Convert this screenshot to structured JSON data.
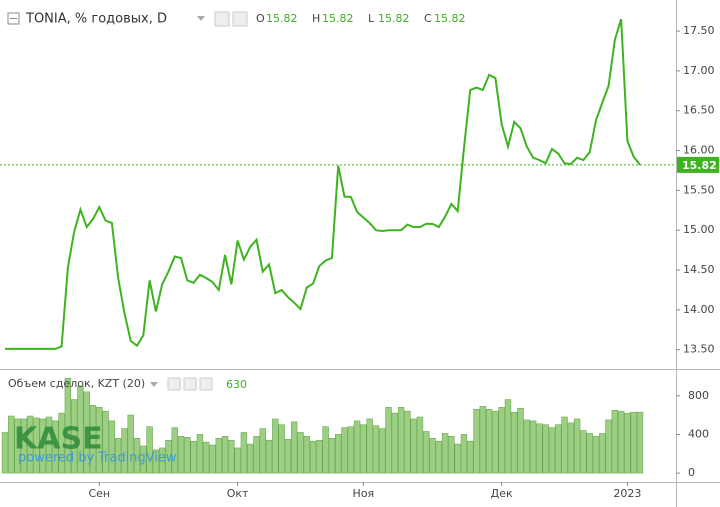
{
  "chart_data": [
    {
      "type": "line",
      "title": "TONIA, % годовых, D",
      "ohlc": [
        {
          "label": "O",
          "value": 15.82
        },
        {
          "label": "H",
          "value": 15.82
        },
        {
          "label": "L",
          "value": 15.82
        },
        {
          "label": "C",
          "value": 15.82
        }
      ],
      "series": [
        {
          "name": "TONIA",
          "color": "#3db31f",
          "values": [
            13.51,
            13.51,
            13.51,
            13.51,
            13.51,
            13.51,
            13.51,
            13.51,
            13.51,
            13.54,
            14.53,
            14.98,
            15.26,
            15.04,
            15.14,
            15.29,
            15.12,
            15.09,
            14.4,
            13.96,
            13.61,
            13.55,
            13.68,
            14.37,
            13.98,
            14.32,
            14.48,
            14.67,
            14.65,
            14.37,
            14.34,
            14.44,
            14.4,
            14.35,
            14.25,
            14.69,
            14.32,
            14.87,
            14.63,
            14.79,
            14.88,
            14.48,
            14.57,
            14.21,
            14.25,
            14.16,
            14.09,
            14.01,
            14.28,
            14.33,
            14.55,
            14.62,
            14.65,
            15.81,
            15.42,
            15.42,
            15.23,
            15.16,
            15.09,
            15.0,
            14.99,
            15.0,
            15.0,
            15.0,
            15.07,
            15.04,
            15.04,
            15.08,
            15.08,
            15.04,
            15.17,
            15.33,
            15.24,
            16.03,
            16.76,
            16.79,
            16.76,
            16.95,
            16.91,
            16.33,
            16.05,
            16.36,
            16.28,
            16.05,
            15.91,
            15.88,
            15.84,
            16.02,
            15.96,
            15.84,
            15.83,
            15.91,
            15.88,
            15.98,
            16.38,
            16.6,
            16.81,
            17.39,
            17.65,
            16.12,
            15.92,
            15.82
          ]
        }
      ],
      "ylim": [
        13.27,
        17.89
      ],
      "yticks": [
        {
          "value": 13.5,
          "label": "13.50"
        },
        {
          "value": 14,
          "label": "14.00"
        },
        {
          "value": 14.5,
          "label": "14.50"
        },
        {
          "value": 15,
          "label": "15.00"
        },
        {
          "value": 15.5,
          "label": "15.50"
        },
        {
          "value": 16,
          "label": "16.00"
        },
        {
          "value": 16.5,
          "label": "16.50"
        },
        {
          "value": 17,
          "label": "17.00"
        },
        {
          "value": 17.5,
          "label": "17.50"
        }
      ]
    },
    {
      "type": "bar",
      "title": "Объем сделок, KZT (20)",
      "categories": [
        null,
        null,
        null,
        null,
        null,
        null,
        null,
        null,
        null,
        null,
        null,
        null,
        null,
        null,
        null,
        "Сен",
        null,
        null,
        null,
        null,
        null,
        null,
        null,
        null,
        null,
        null,
        null,
        null,
        null,
        null,
        null,
        null,
        null,
        null,
        null,
        null,
        null,
        "Окт",
        null,
        null,
        null,
        null,
        null,
        null,
        null,
        null,
        null,
        null,
        null,
        null,
        null,
        null,
        null,
        null,
        null,
        null,
        null,
        "Ноя",
        null,
        null,
        null,
        null,
        null,
        null,
        null,
        null,
        null,
        null,
        null,
        null,
        null,
        null,
        null,
        null,
        null,
        null,
        null,
        null,
        null,
        "Дек",
        null,
        null,
        null,
        null,
        null,
        null,
        null,
        null,
        null,
        null,
        null,
        null,
        null,
        null,
        null,
        null,
        null,
        null,
        null,
        "2023",
        null,
        null
      ],
      "series": [
        {
          "name": "Объем сделок",
          "color": "#9ccf83",
          "values": [
            420,
            590,
            560,
            560,
            590,
            570,
            560,
            580,
            540,
            620,
            980,
            760,
            900,
            840,
            700,
            680,
            640,
            540,
            360,
            460,
            600,
            360,
            280,
            480,
            240,
            260,
            340,
            470,
            380,
            370,
            330,
            400,
            320,
            290,
            360,
            380,
            340,
            260,
            420,
            300,
            380,
            460,
            340,
            560,
            500,
            350,
            530,
            420,
            380,
            330,
            340,
            480,
            360,
            400,
            470,
            480,
            540,
            500,
            560,
            490,
            460,
            680,
            620,
            680,
            640,
            560,
            580,
            430,
            360,
            330,
            410,
            380,
            300,
            400,
            330,
            660,
            690,
            660,
            640,
            680,
            760,
            630,
            670,
            550,
            540,
            510,
            500,
            470,
            500,
            580,
            520,
            560,
            440,
            410,
            380,
            410,
            550,
            650,
            640,
            620,
            630,
            630
          ]
        }
      ],
      "ylim": [
        -92,
        1056
      ],
      "yticks": [
        0,
        400,
        800
      ],
      "watermark": {
        "logo": "KASE",
        "tagline": "powered by",
        "brand": "TradingView"
      }
    }
  ]
}
